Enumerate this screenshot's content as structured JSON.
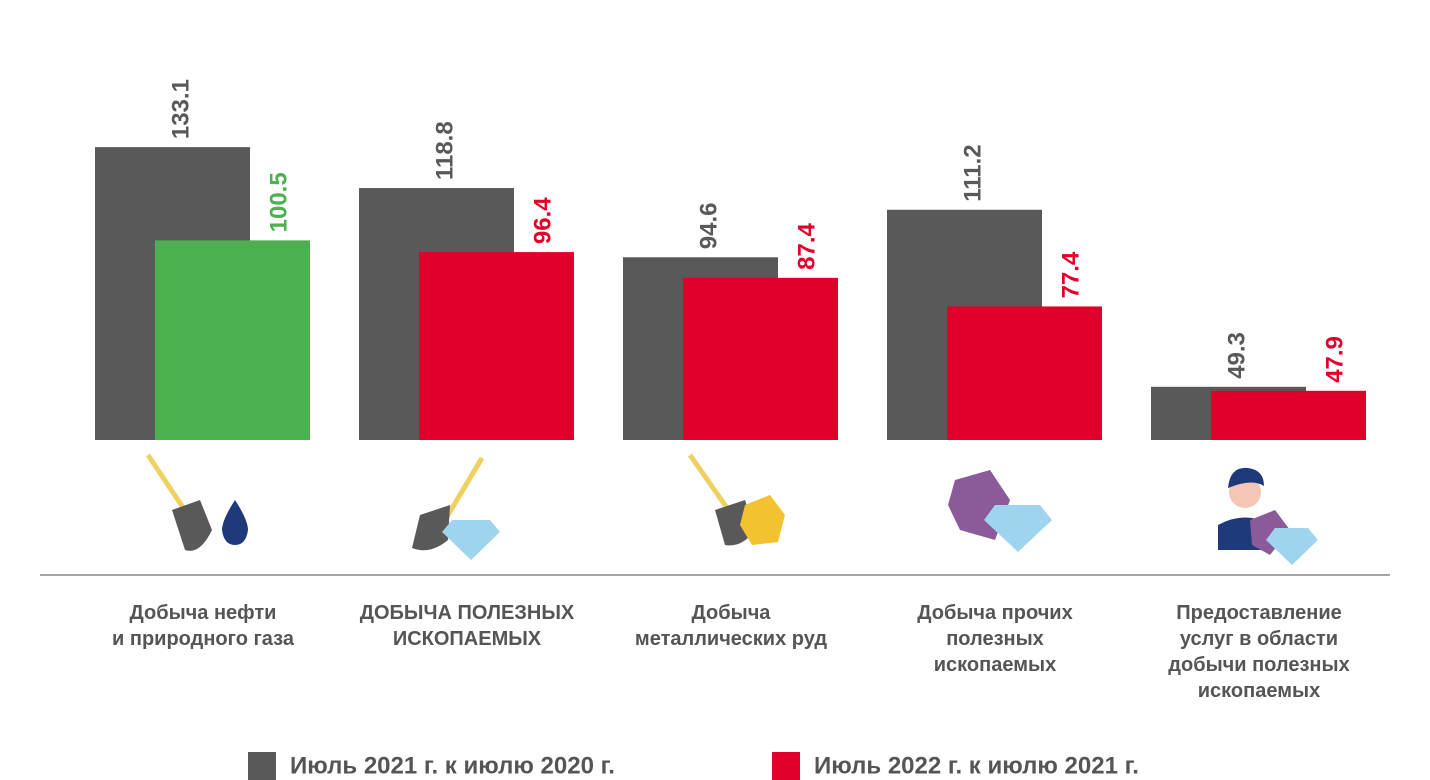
{
  "chart_data": {
    "type": "bar",
    "categories": [
      "Добыча нефти\nи природного газа",
      "ДОБЫЧА ПОЛЕЗНЫХ\nИСКОПАЕМЫХ",
      "Добыча\nметаллических руд",
      "Добыча прочих\nполезных\nископаемых",
      "Предоставление\nуслуг в области\nдобычи полезных\nископаемых"
    ],
    "series": [
      {
        "name": "Июль 2021 г. к июлю 2020 г.",
        "color": "#595959",
        "values": [
          133.1,
          118.8,
          94.6,
          111.2,
          49.3
        ]
      },
      {
        "name": "Июль 2022 г. к июлю 2021 г.",
        "color": "#e0002a",
        "colors": [
          "#4caf50",
          "#e0002a",
          "#e0002a",
          "#e0002a",
          "#e0002a"
        ],
        "values": [
          100.5,
          96.4,
          87.4,
          77.4,
          47.9
        ]
      }
    ],
    "ylim": [
      30.7,
      180
    ],
    "legend": "bottom"
  }
}
